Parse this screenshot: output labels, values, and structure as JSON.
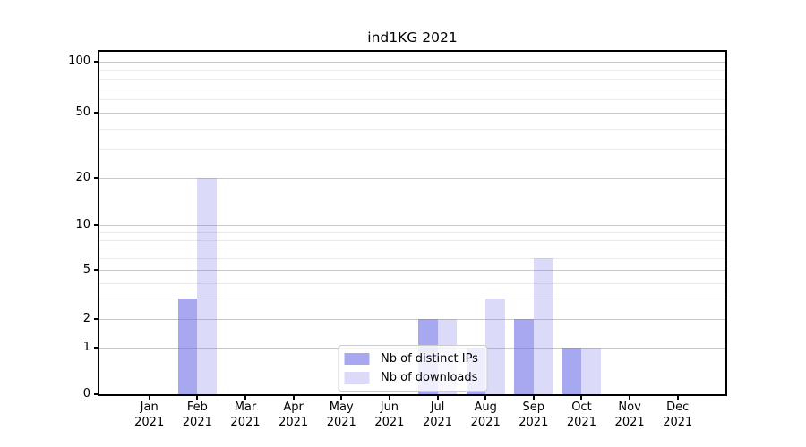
{
  "chart_data": {
    "type": "bar",
    "title": "ind1KG 2021",
    "categories": [
      "Jan",
      "Feb",
      "Mar",
      "Apr",
      "May",
      "Jun",
      "Jul",
      "Aug",
      "Sep",
      "Oct",
      "Nov",
      "Dec"
    ],
    "year_label": "2021",
    "series": [
      {
        "name": "Nb of distinct IPs",
        "color": "rgba(112,112,232,0.61)",
        "values": [
          0,
          3,
          0,
          0,
          0,
          0,
          2,
          1,
          2,
          1,
          0,
          0
        ]
      },
      {
        "name": "Nb of downloads",
        "color": "rgba(112,112,232,0.25)",
        "values": [
          0,
          20,
          0,
          0,
          0,
          0,
          2,
          3,
          6,
          1,
          0,
          0
        ]
      }
    ],
    "y_axis": {
      "major_ticks": [
        0,
        1,
        2,
        5,
        10,
        20,
        50,
        100
      ],
      "minor_ticks": [
        3,
        4,
        6,
        7,
        8,
        9,
        30,
        40,
        60,
        70,
        80,
        90
      ],
      "scale": "quasi-log",
      "range": [
        0,
        110
      ]
    },
    "xlabel": "",
    "ylabel": "",
    "grid": {
      "major": true,
      "minor": true
    },
    "legend": {
      "position": "lower center"
    }
  },
  "colors": {
    "bar_base": "#7070e8",
    "grid_major": "#c9c9c9",
    "grid_minor": "#ebebeb",
    "axis": "#000000",
    "legend_border": "#cccccc",
    "background": "#ffffff"
  }
}
